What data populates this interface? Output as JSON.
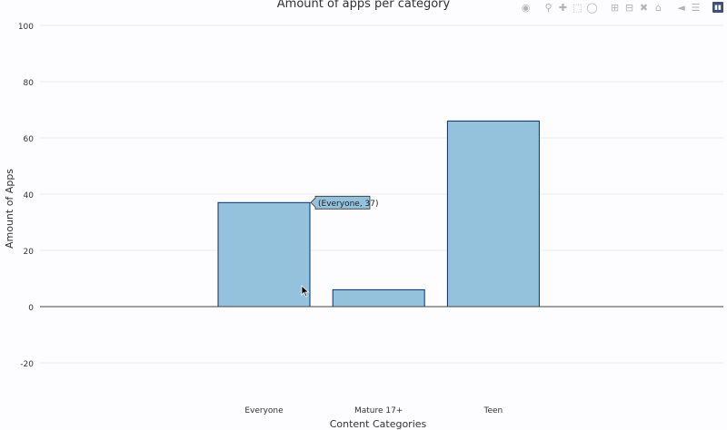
{
  "chart_data": {
    "type": "bar",
    "title": "Amount of apps per category",
    "xlabel": "Content Categories",
    "ylabel": "Amount of Apps",
    "categories": [
      "Everyone",
      "Mature 17+",
      "Teen"
    ],
    "values": [
      37,
      6,
      66
    ],
    "ylim": [
      -30,
      100
    ],
    "yticks": [
      -20,
      0,
      20,
      40,
      60,
      80,
      100
    ],
    "grid": true,
    "bar_color": "#94c1dc",
    "bar_edge_color": "#08306b",
    "tooltip": {
      "text": "(Everyone, 37)",
      "category": "Everyone"
    }
  },
  "toolbar": {
    "icons": [
      "camera-icon",
      "zoom-icon",
      "pan-icon",
      "box-select-icon",
      "lasso-icon",
      "zoom-in-icon",
      "zoom-out-icon",
      "autoscale-icon",
      "reset-axes-icon",
      "spike-lines-icon",
      "hover-closest-icon",
      "hover-compare-icon",
      "plotly-logo-icon"
    ]
  }
}
